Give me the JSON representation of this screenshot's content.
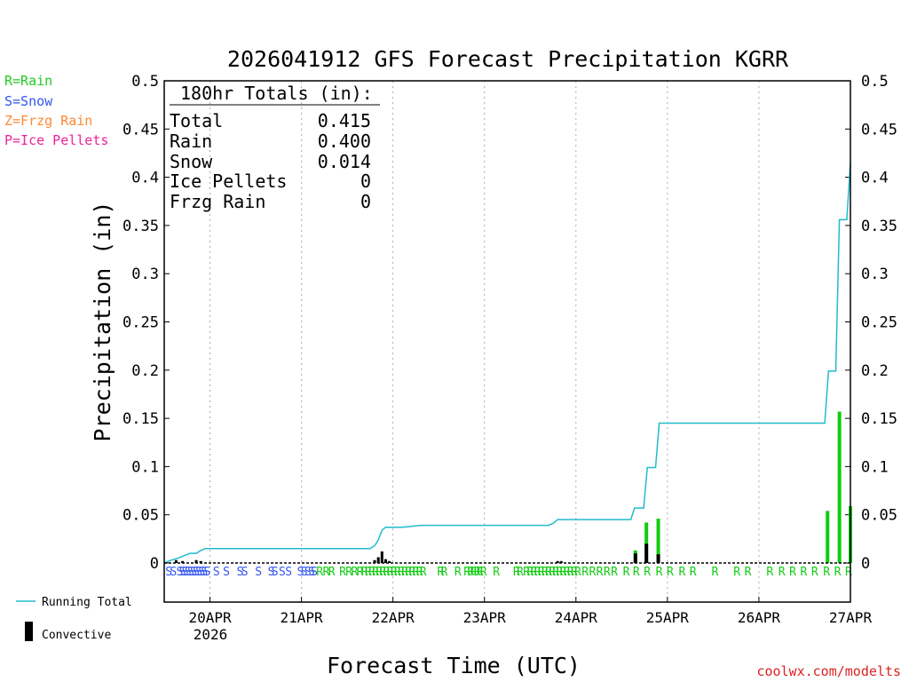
{
  "chart_data": {
    "type": "bar",
    "title": "2026041912 GFS Forecast Precipitation KGRR",
    "xlabel": "Forecast Time (UTC)",
    "ylabel": "Precipitation (in)",
    "ylim": [
      0,
      0.5
    ],
    "xlim": [
      -0.5,
      7.0
    ],
    "yticks": [
      {
        "v": 0,
        "label": "0"
      },
      {
        "v": 0.05,
        "label": "0.05"
      },
      {
        "v": 0.1,
        "label": "0.1"
      },
      {
        "v": 0.15,
        "label": "0.15"
      },
      {
        "v": 0.2,
        "label": "0.2"
      },
      {
        "v": 0.25,
        "label": "0.25"
      },
      {
        "v": 0.3,
        "label": "0.3"
      },
      {
        "v": 0.35,
        "label": "0.35"
      },
      {
        "v": 0.4,
        "label": "0.4"
      },
      {
        "v": 0.45,
        "label": "0.45"
      },
      {
        "v": 0.5,
        "label": "0.5"
      }
    ],
    "xticks": [
      {
        "v": 0,
        "label": "20APR"
      },
      {
        "v": 1,
        "label": "21APR"
      },
      {
        "v": 2,
        "label": "22APR"
      },
      {
        "v": 3,
        "label": "23APR"
      },
      {
        "v": 4,
        "label": "24APR"
      },
      {
        "v": 5,
        "label": "25APR"
      },
      {
        "v": 6,
        "label": "26APR"
      },
      {
        "v": 7,
        "label": "27APR"
      }
    ],
    "year_label": "2026",
    "legend_types": [
      {
        "text": "R=Rain",
        "color": "#22cc22"
      },
      {
        "text": "S=Snow",
        "color": "#3355ee"
      },
      {
        "text": "Z=Frzg Rain",
        "color": "#ff8833"
      },
      {
        "text": "P=Ice Pellets",
        "color": "#ee2299"
      }
    ],
    "legend_series": {
      "running_total": "Running Total",
      "convective": "Convective"
    },
    "totals": {
      "header": "180hr Totals (in):",
      "rows": [
        {
          "label": "Total",
          "value": "0.415"
        },
        {
          "label": "Rain",
          "value": "0.400"
        },
        {
          "label": "Snow",
          "value": "0.014"
        },
        {
          "label": "Ice Pellets",
          "value": "0"
        },
        {
          "label": "Frzg Rain",
          "value": "0"
        }
      ]
    },
    "credit": "coolwx.com/modelts",
    "colors": {
      "rain_bar": "#11cc11",
      "snow_bar": "#3355ee",
      "convective": "#000000",
      "running_total": "#22bbcc",
      "grid": "#aaaaaa",
      "credit": "#dd2222"
    },
    "series": [
      {
        "name": "Precipitation",
        "bars": [
          {
            "x": 4.65,
            "value": 0.013,
            "type": "rain",
            "conv": 0.01
          },
          {
            "x": 4.77,
            "value": 0.042,
            "type": "rain",
            "conv": 0.02
          },
          {
            "x": 4.9,
            "value": 0.046,
            "type": "rain",
            "conv": 0.009
          },
          {
            "x": 6.75,
            "value": 0.054,
            "type": "rain",
            "conv": 0
          },
          {
            "x": 6.88,
            "value": 0.157,
            "type": "rain",
            "conv": 0
          },
          {
            "x": 7.0,
            "value": 0.059,
            "type": "rain",
            "conv": 0
          }
        ]
      },
      {
        "name": "Convective",
        "bars": [
          {
            "x": -0.37,
            "value": 0.003
          },
          {
            "x": -0.3,
            "value": 0.002
          },
          {
            "x": -0.15,
            "value": 0.003
          },
          {
            "x": -0.1,
            "value": 0.002
          },
          {
            "x": 1.8,
            "value": 0.003
          },
          {
            "x": 1.84,
            "value": 0.006
          },
          {
            "x": 1.88,
            "value": 0.012
          },
          {
            "x": 1.92,
            "value": 0.004
          },
          {
            "x": 1.96,
            "value": 0.002
          },
          {
            "x": 3.8,
            "value": 0.002
          },
          {
            "x": 3.84,
            "value": 0.002
          }
        ]
      },
      {
        "name": "Running Total",
        "points": [
          [
            -0.5,
            0
          ],
          [
            -0.42,
            0.003
          ],
          [
            -0.35,
            0.005
          ],
          [
            -0.3,
            0.007
          ],
          [
            -0.22,
            0.01
          ],
          [
            -0.15,
            0.01
          ],
          [
            -0.1,
            0.013
          ],
          [
            -0.05,
            0.015
          ],
          [
            1.0,
            0.015
          ],
          [
            1.75,
            0.015
          ],
          [
            1.8,
            0.018
          ],
          [
            1.84,
            0.024
          ],
          [
            1.88,
            0.034
          ],
          [
            1.92,
            0.037
          ],
          [
            2.0,
            0.037
          ],
          [
            2.1,
            0.037
          ],
          [
            2.2,
            0.038
          ],
          [
            2.3,
            0.039
          ],
          [
            3.0,
            0.039
          ],
          [
            3.7,
            0.039
          ],
          [
            3.75,
            0.041
          ],
          [
            3.8,
            0.045
          ],
          [
            3.85,
            0.045
          ],
          [
            4.6,
            0.045
          ],
          [
            4.64,
            0.057
          ],
          [
            4.74,
            0.057
          ],
          [
            4.78,
            0.099
          ],
          [
            4.87,
            0.099
          ],
          [
            4.91,
            0.145
          ],
          [
            5.0,
            0.145
          ],
          [
            6.72,
            0.145
          ],
          [
            6.76,
            0.199
          ],
          [
            6.84,
            0.199
          ],
          [
            6.88,
            0.356
          ],
          [
            6.96,
            0.356
          ],
          [
            7.0,
            0.415
          ]
        ]
      }
    ],
    "type_markers": [
      {
        "x": -0.45,
        "t": "S"
      },
      {
        "x": -0.4,
        "t": "S"
      },
      {
        "x": -0.33,
        "t": "S"
      },
      {
        "x": -0.3,
        "t": "S"
      },
      {
        "x": -0.27,
        "t": "S"
      },
      {
        "x": -0.24,
        "t": "S"
      },
      {
        "x": -0.21,
        "t": "S"
      },
      {
        "x": -0.18,
        "t": "S"
      },
      {
        "x": -0.15,
        "t": "S"
      },
      {
        "x": -0.12,
        "t": "S"
      },
      {
        "x": -0.09,
        "t": "S"
      },
      {
        "x": -0.06,
        "t": "S"
      },
      {
        "x": -0.03,
        "t": "S"
      },
      {
        "x": 0.07,
        "t": "S"
      },
      {
        "x": 0.18,
        "t": "S"
      },
      {
        "x": 0.33,
        "t": "S"
      },
      {
        "x": 0.38,
        "t": "S"
      },
      {
        "x": 0.53,
        "t": "S"
      },
      {
        "x": 0.67,
        "t": "S"
      },
      {
        "x": 0.71,
        "t": "S"
      },
      {
        "x": 0.79,
        "t": "S"
      },
      {
        "x": 0.86,
        "t": "S"
      },
      {
        "x": 0.99,
        "t": "S"
      },
      {
        "x": 1.03,
        "t": "S"
      },
      {
        "x": 1.07,
        "t": "S"
      },
      {
        "x": 1.11,
        "t": "S"
      },
      {
        "x": 1.14,
        "t": "S"
      },
      {
        "x": 1.2,
        "t": "R"
      },
      {
        "x": 1.27,
        "t": "R"
      },
      {
        "x": 1.33,
        "t": "R"
      },
      {
        "x": 1.45,
        "t": "R"
      },
      {
        "x": 1.52,
        "t": "R"
      },
      {
        "x": 1.58,
        "t": "R"
      },
      {
        "x": 1.64,
        "t": "R"
      },
      {
        "x": 1.69,
        "t": "R"
      },
      {
        "x": 1.73,
        "t": "R"
      },
      {
        "x": 1.77,
        "t": "R"
      },
      {
        "x": 1.81,
        "t": "R"
      },
      {
        "x": 1.85,
        "t": "R"
      },
      {
        "x": 1.89,
        "t": "R"
      },
      {
        "x": 1.93,
        "t": "R"
      },
      {
        "x": 1.97,
        "t": "R"
      },
      {
        "x": 2.01,
        "t": "R"
      },
      {
        "x": 2.05,
        "t": "R"
      },
      {
        "x": 2.09,
        "t": "R"
      },
      {
        "x": 2.13,
        "t": "R"
      },
      {
        "x": 2.17,
        "t": "R"
      },
      {
        "x": 2.21,
        "t": "R"
      },
      {
        "x": 2.25,
        "t": "R"
      },
      {
        "x": 2.29,
        "t": "R"
      },
      {
        "x": 2.33,
        "t": "R"
      },
      {
        "x": 2.52,
        "t": "R"
      },
      {
        "x": 2.56,
        "t": "R"
      },
      {
        "x": 2.71,
        "t": "R"
      },
      {
        "x": 2.81,
        "t": "R"
      },
      {
        "x": 2.85,
        "t": "R"
      },
      {
        "x": 2.88,
        "t": "R"
      },
      {
        "x": 2.92,
        "t": "R"
      },
      {
        "x": 2.95,
        "t": "R"
      },
      {
        "x": 2.99,
        "t": "R"
      },
      {
        "x": 3.13,
        "t": "R"
      },
      {
        "x": 3.35,
        "t": "R"
      },
      {
        "x": 3.39,
        "t": "R"
      },
      {
        "x": 3.46,
        "t": "R"
      },
      {
        "x": 3.5,
        "t": "R"
      },
      {
        "x": 3.54,
        "t": "R"
      },
      {
        "x": 3.58,
        "t": "R"
      },
      {
        "x": 3.62,
        "t": "R"
      },
      {
        "x": 3.66,
        "t": "R"
      },
      {
        "x": 3.7,
        "t": "R"
      },
      {
        "x": 3.74,
        "t": "R"
      },
      {
        "x": 3.78,
        "t": "R"
      },
      {
        "x": 3.82,
        "t": "R"
      },
      {
        "x": 3.86,
        "t": "R"
      },
      {
        "x": 3.9,
        "t": "R"
      },
      {
        "x": 3.94,
        "t": "R"
      },
      {
        "x": 3.98,
        "t": "R"
      },
      {
        "x": 4.02,
        "t": "R"
      },
      {
        "x": 4.1,
        "t": "R"
      },
      {
        "x": 4.18,
        "t": "R"
      },
      {
        "x": 4.26,
        "t": "R"
      },
      {
        "x": 4.34,
        "t": "R"
      },
      {
        "x": 4.42,
        "t": "R"
      },
      {
        "x": 4.55,
        "t": "R"
      },
      {
        "x": 4.66,
        "t": "R"
      },
      {
        "x": 4.78,
        "t": "R"
      },
      {
        "x": 4.91,
        "t": "R"
      },
      {
        "x": 5.03,
        "t": "R"
      },
      {
        "x": 5.16,
        "t": "R"
      },
      {
        "x": 5.28,
        "t": "R"
      },
      {
        "x": 5.52,
        "t": "R"
      },
      {
        "x": 5.76,
        "t": "R"
      },
      {
        "x": 5.88,
        "t": "R"
      },
      {
        "x": 6.12,
        "t": "R"
      },
      {
        "x": 6.25,
        "t": "R"
      },
      {
        "x": 6.37,
        "t": "R"
      },
      {
        "x": 6.49,
        "t": "R"
      },
      {
        "x": 6.61,
        "t": "R"
      },
      {
        "x": 6.74,
        "t": "R"
      },
      {
        "x": 6.86,
        "t": "R"
      },
      {
        "x": 6.98,
        "t": "R"
      }
    ]
  }
}
